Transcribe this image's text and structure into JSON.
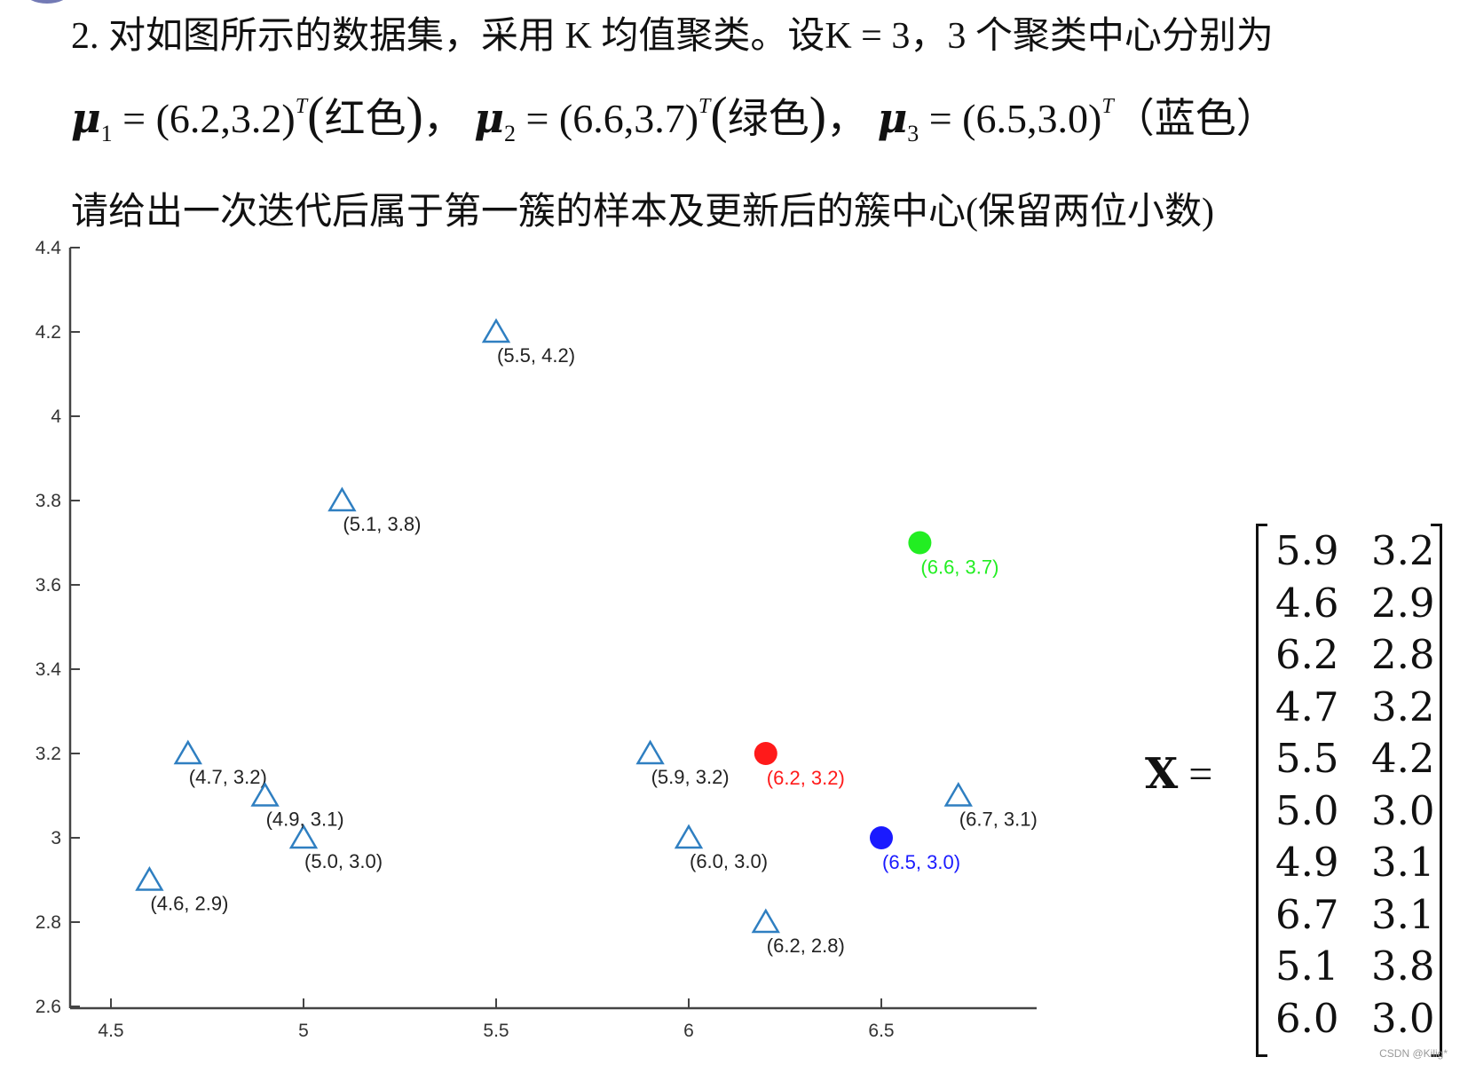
{
  "question": {
    "line1": "2. 对如图所示的数据集，采用 K 均值聚类。设K = 3，3 个聚类中心分别为",
    "line2": {
      "mu1_symbol": "μ",
      "mu1_sub": "1",
      "mu1_value": " = (6.2,3.2)",
      "mu1_sup": "T",
      "mu1_color": "红色",
      "sep1": "，",
      "mu2_symbol": "μ",
      "mu2_sub": "2",
      "mu2_value": " = (6.6,3.7)",
      "mu2_sup": "T",
      "mu2_color": "绿色",
      "sep2": "，",
      "mu3_symbol": "μ",
      "mu3_sub": "3",
      "mu3_value": " = (6.5,3.0)",
      "mu3_sup": "T",
      "mu3_color": "（蓝色）"
    },
    "line3": "请给出一次迭代后属于第一簇的样本及更新后的簇中心(保留两位小数)"
  },
  "matrix": {
    "label": "X",
    "equals": " =",
    "rows": [
      [
        "5.9",
        "3.2"
      ],
      [
        "4.6",
        "2.9"
      ],
      [
        "6.2",
        "2.8"
      ],
      [
        "4.7",
        "3.2"
      ],
      [
        "5.5",
        "4.2"
      ],
      [
        "5.0",
        "3.0"
      ],
      [
        "4.9",
        "3.1"
      ],
      [
        "6.7",
        "3.1"
      ],
      [
        "5.1",
        "3.8"
      ],
      [
        "6.0",
        "3.0"
      ]
    ]
  },
  "watermark": "CSDN @Kilig*",
  "chart_data": {
    "type": "scatter",
    "title": "",
    "xlabel": "",
    "ylabel": "",
    "xlim": [
      4.4,
      6.9
    ],
    "ylim": [
      2.6,
      4.4
    ],
    "grid": false,
    "x_ticks": [
      "4.5",
      "5",
      "5.5",
      "6",
      "6.5"
    ],
    "y_ticks": [
      "2.6",
      "2.8",
      "3",
      "3.2",
      "3.4",
      "3.6",
      "3.8",
      "4",
      "4.2",
      "4.4"
    ],
    "series": [
      {
        "name": "samples",
        "marker": "triangle-open",
        "color": "#2f7fc1",
        "points": [
          {
            "x": 5.9,
            "y": 3.2,
            "label": "(5.9, 3.2)"
          },
          {
            "x": 4.6,
            "y": 2.9,
            "label": "(4.6, 2.9)"
          },
          {
            "x": 6.2,
            "y": 2.8,
            "label": "(6.2, 2.8)"
          },
          {
            "x": 4.7,
            "y": 3.2,
            "label": "(4.7, 3.2)"
          },
          {
            "x": 5.5,
            "y": 4.2,
            "label": "(5.5, 4.2)"
          },
          {
            "x": 5.0,
            "y": 3.0,
            "label": "(5.0, 3.0)"
          },
          {
            "x": 4.9,
            "y": 3.1,
            "label": "(4.9, 3.1)"
          },
          {
            "x": 6.7,
            "y": 3.1,
            "label": "(6.7, 3.1)"
          },
          {
            "x": 5.1,
            "y": 3.8,
            "label": "(5.1, 3.8)"
          },
          {
            "x": 6.0,
            "y": 3.0,
            "label": "(6.0, 3.0)"
          }
        ]
      },
      {
        "name": "centers",
        "marker": "circle-filled",
        "points": [
          {
            "x": 6.2,
            "y": 3.2,
            "label": "(6.2, 3.2)",
            "color": "#ff1a1a"
          },
          {
            "x": 6.6,
            "y": 3.7,
            "label": "(6.6, 3.7)",
            "color": "#22ee22"
          },
          {
            "x": 6.5,
            "y": 3.0,
            "label": "(6.5, 3.0)",
            "color": "#1a1aff"
          }
        ]
      }
    ]
  }
}
